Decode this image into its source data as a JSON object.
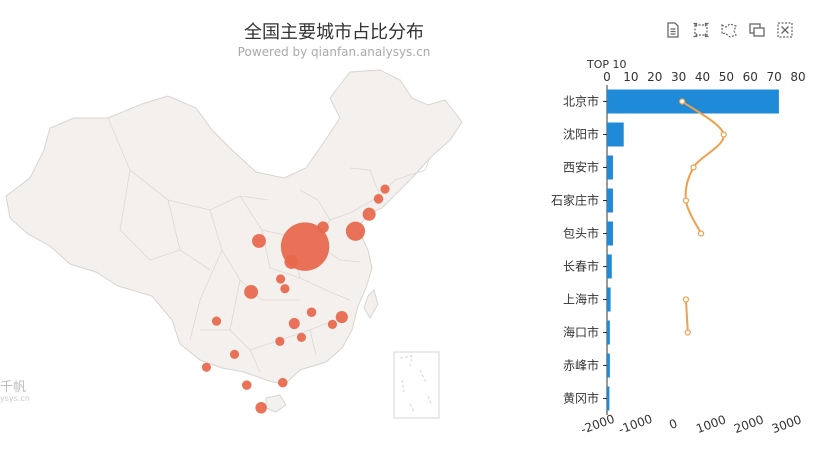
{
  "header": {
    "title": "全国主要城市占比分布",
    "subtitle": "Powered by qianfan.analysys.cn"
  },
  "toolbox": [
    "data-view-icon",
    "zoom-icon",
    "lasso-icon",
    "brush-icon",
    "clear-icon"
  ],
  "watermark": {
    "main": "千帆",
    "sub": "ysys.cn"
  },
  "colors": {
    "bar": "#1f8ad8",
    "line": "#f0a04b",
    "bubble": "#e8664a",
    "map_fill": "#f3f0ee",
    "map_stroke": "#d8d4d2"
  },
  "chart_data": {
    "type": "bar",
    "title": "TOP 10",
    "categories": [
      "北京市",
      "沈阳市",
      "西安市",
      "石家庄市",
      "包头市",
      "长春市",
      "上海市",
      "海口市",
      "赤峰市",
      "黄冈市"
    ],
    "top_axis": {
      "ticks": [
        0,
        10,
        20,
        30,
        40,
        50,
        60,
        70,
        80
      ],
      "range": [
        0,
        80
      ]
    },
    "bottom_axis": {
      "ticks": [
        -2000,
        -1000,
        0,
        1000,
        2000,
        3000
      ],
      "range": [
        -2000,
        3000
      ]
    },
    "series": [
      {
        "type": "bar",
        "axis": "top",
        "values": [
          72,
          7,
          2.5,
          2.5,
          2.5,
          2,
          1.5,
          1.2,
          1.2,
          1
        ]
      },
      {
        "type": "line",
        "axis": "bottom",
        "values": [
          200,
          1300,
          500,
          300,
          700,
          null,
          300,
          350,
          null,
          null
        ]
      }
    ],
    "map_bubbles": [
      {
        "lon": 116.4,
        "lat": 39.9,
        "value": 72
      },
      {
        "lon": 123.4,
        "lat": 41.8,
        "value": 7
      },
      {
        "lon": 108.9,
        "lat": 34.3,
        "value": 2.5
      },
      {
        "lon": 114.5,
        "lat": 38.0,
        "value": 2.5
      },
      {
        "lon": 110.0,
        "lat": 40.6,
        "value": 2.5
      },
      {
        "lon": 125.3,
        "lat": 43.9,
        "value": 2
      },
      {
        "lon": 121.5,
        "lat": 31.2,
        "value": 1.5
      },
      {
        "lon": 110.3,
        "lat": 20.0,
        "value": 1.2
      },
      {
        "lon": 118.9,
        "lat": 42.3,
        "value": 1.2
      },
      {
        "lon": 114.9,
        "lat": 30.4,
        "value": 1
      },
      {
        "lon": 126.6,
        "lat": 45.8,
        "value": 0.5
      },
      {
        "lon": 127.5,
        "lat": 47.0,
        "value": 0.4
      },
      {
        "lon": 113.3,
        "lat": 23.1,
        "value": 0.5
      },
      {
        "lon": 108.3,
        "lat": 22.8,
        "value": 0.5
      },
      {
        "lon": 104.1,
        "lat": 30.7,
        "value": 0.4
      },
      {
        "lon": 102.7,
        "lat": 25.0,
        "value": 0.4
      },
      {
        "lon": 112.9,
        "lat": 28.2,
        "value": 0.4
      },
      {
        "lon": 113.6,
        "lat": 34.7,
        "value": 0.4
      },
      {
        "lon": 113.0,
        "lat": 35.9,
        "value": 0.4
      },
      {
        "lon": 120.2,
        "lat": 30.3,
        "value": 0.4
      },
      {
        "lon": 117.3,
        "lat": 31.8,
        "value": 0.5
      },
      {
        "lon": 115.9,
        "lat": 28.7,
        "value": 0.4
      },
      {
        "lon": 106.6,
        "lat": 26.6,
        "value": 0.4
      }
    ]
  }
}
